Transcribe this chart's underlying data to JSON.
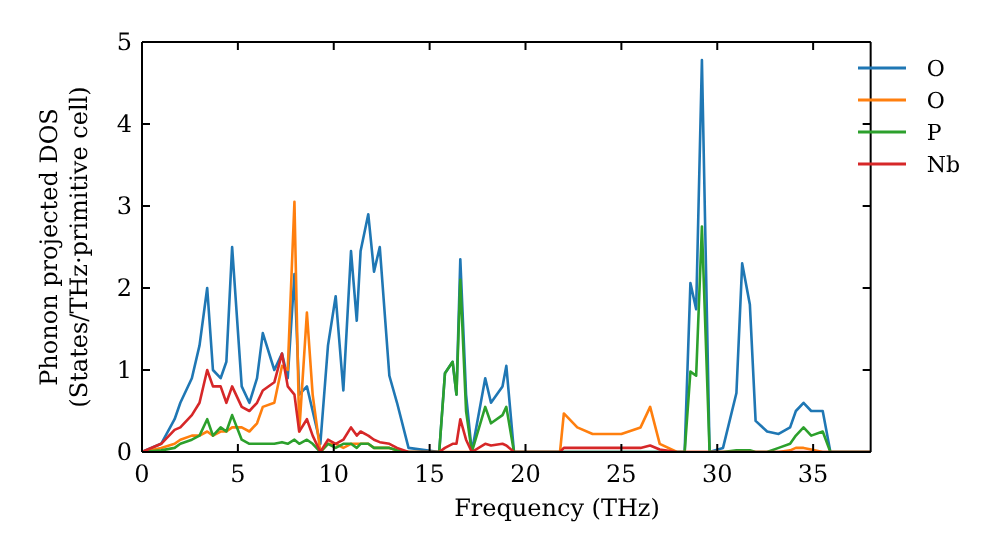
{
  "chart_data": {
    "type": "line",
    "xlabel": "Frequency (THz)",
    "ylabel": "Phonon projected DOS\n(States/THz·primitive cell)",
    "x": [
      0,
      1,
      1.7,
      2,
      2.6,
      3,
      3.4,
      3.7,
      4.1,
      4.4,
      4.7,
      5.2,
      5.6,
      6,
      6.3,
      6.9,
      7.3,
      7.6,
      7.95,
      8.2,
      8.6,
      8.9,
      9.3,
      9.7,
      10.1,
      10.5,
      10.9,
      11.2,
      11.4,
      11.8,
      12.1,
      12.4,
      12.9,
      13.3,
      13.9,
      15.5,
      15.8,
      16.2,
      16.4,
      16.6,
      16.9,
      17.2,
      17.9,
      18.2,
      18.8,
      19.0,
      19.4,
      21.8,
      22.0,
      22.7,
      23.5,
      25,
      26.0,
      26.5,
      27.0,
      27.9,
      28.3,
      28.6,
      28.9,
      29.2,
      29.6,
      30.3,
      31.0,
      31.3,
      31.7,
      32.0,
      32.6,
      33.2,
      33.8,
      34.1,
      34.5,
      34.9,
      35.5,
      35.9,
      38
    ],
    "series": [
      {
        "name": "O",
        "color": "#1f77b4",
        "values": [
          0,
          0.1,
          0.4,
          0.6,
          0.9,
          1.3,
          2.0,
          1.0,
          0.9,
          1.1,
          2.5,
          0.8,
          0.6,
          0.9,
          1.45,
          1.0,
          1.2,
          0.9,
          2.17,
          0.7,
          0.8,
          0.5,
          0.1,
          1.3,
          1.9,
          0.75,
          2.45,
          1.6,
          2.45,
          2.9,
          2.2,
          2.5,
          0.93,
          0.6,
          0.05,
          0,
          0.96,
          1.1,
          0.7,
          2.35,
          0.7,
          0,
          0.9,
          0.6,
          0.8,
          1.05,
          0,
          0,
          0,
          0,
          0,
          0,
          0,
          0,
          0,
          0,
          0,
          2.06,
          1.74,
          4.78,
          0,
          0.05,
          0.72,
          2.3,
          1.8,
          0.38,
          0.25,
          0.22,
          0.3,
          0.5,
          0.6,
          0.5,
          0.5,
          0,
          0
        ]
      },
      {
        "name": "O",
        "color": "#ff7f0e",
        "values": [
          0,
          0.05,
          0.1,
          0.15,
          0.2,
          0.2,
          0.25,
          0.2,
          0.25,
          0.25,
          0.3,
          0.3,
          0.25,
          0.35,
          0.55,
          0.6,
          1.05,
          1.0,
          3.05,
          0.25,
          1.7,
          0.7,
          0,
          0.1,
          0.1,
          0.05,
          0.1,
          0.1,
          0.1,
          0.1,
          0.05,
          0.05,
          0.05,
          0.02,
          0,
          0,
          0,
          0,
          0,
          0,
          0,
          0,
          0,
          0,
          0,
          0,
          0,
          0,
          0.47,
          0.3,
          0.22,
          0.22,
          0.3,
          0.55,
          0.1,
          0,
          0,
          0,
          0,
          0,
          0,
          0,
          0,
          0,
          0,
          0,
          0,
          0,
          0.02,
          0.05,
          0.05,
          0.03,
          0,
          0,
          0
        ]
      },
      {
        "name": "P",
        "color": "#2ca02c",
        "values": [
          0,
          0.02,
          0.05,
          0.1,
          0.15,
          0.2,
          0.4,
          0.2,
          0.3,
          0.25,
          0.45,
          0.15,
          0.1,
          0.1,
          0.1,
          0.1,
          0.12,
          0.1,
          0.15,
          0.1,
          0.15,
          0.1,
          0,
          0.1,
          0.05,
          0.1,
          0.1,
          0.05,
          0.1,
          0.1,
          0.05,
          0.05,
          0.05,
          0.02,
          0,
          0,
          0.96,
          1.1,
          0.7,
          2.1,
          0.5,
          0,
          0.55,
          0.35,
          0.45,
          0.55,
          0,
          0,
          0,
          0,
          0,
          0,
          0,
          0,
          0,
          0,
          0,
          0.98,
          0.93,
          2.75,
          0,
          0,
          0.02,
          0.02,
          0.02,
          0,
          0,
          0.05,
          0.1,
          0.2,
          0.3,
          0.2,
          0.25,
          0,
          0
        ]
      },
      {
        "name": "Nb",
        "color": "#d62728",
        "values": [
          0,
          0.1,
          0.27,
          0.3,
          0.45,
          0.6,
          1.0,
          0.8,
          0.8,
          0.6,
          0.8,
          0.55,
          0.5,
          0.6,
          0.75,
          0.85,
          1.2,
          0.8,
          0.7,
          0.25,
          0.4,
          0.2,
          0,
          0.15,
          0.1,
          0.15,
          0.3,
          0.2,
          0.25,
          0.2,
          0.15,
          0.12,
          0.1,
          0.05,
          0,
          0,
          0.05,
          0.1,
          0.1,
          0.4,
          0.15,
          0,
          0.1,
          0.08,
          0.1,
          0.08,
          0,
          0,
          0.05,
          0.05,
          0.05,
          0.05,
          0.05,
          0.08,
          0.03,
          0,
          0,
          0,
          0,
          0,
          0,
          0,
          0,
          0,
          0,
          0,
          0,
          0,
          0,
          0,
          0,
          0,
          0,
          0,
          0
        ]
      }
    ],
    "xlim": [
      0,
      38
    ],
    "xticks": [
      0,
      5,
      10,
      15,
      20,
      25,
      30,
      35
    ],
    "ylim": [
      0,
      5
    ],
    "yticks": [
      0,
      1,
      2,
      3,
      4,
      5
    ],
    "legend": "top right",
    "grid": false,
    "marker": "none",
    "line_style": "solid"
  }
}
